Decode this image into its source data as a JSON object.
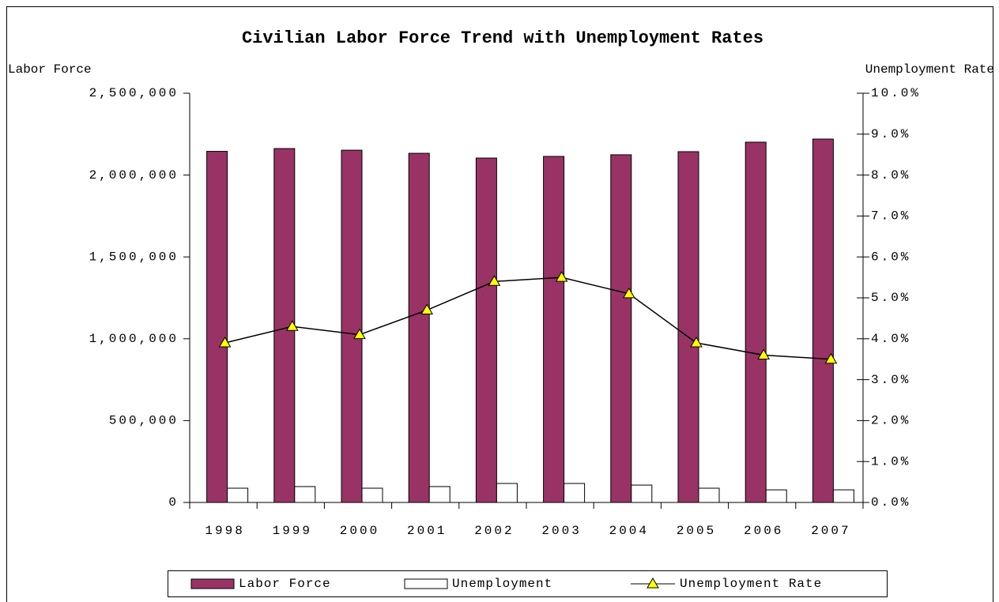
{
  "chart_data": {
    "type": "bar_line",
    "title": "Civilian Labor Force Trend with Unemployment Rates",
    "ylabel": "Labor Force",
    "y2label": "Unemployment Rate",
    "categories": [
      "1998",
      "1999",
      "2000",
      "2001",
      "2002",
      "2003",
      "2004",
      "2005",
      "2006",
      "2007"
    ],
    "series": [
      {
        "name": "Labor Force",
        "type": "bar",
        "color": "#993366",
        "values": [
          2145000,
          2162000,
          2152000,
          2133000,
          2104000,
          2114000,
          2124000,
          2143000,
          2201000,
          2220000
        ]
      },
      {
        "name": "Unemployment",
        "type": "bar",
        "color": "#ffffff",
        "values": [
          87000,
          97000,
          87000,
          97000,
          116000,
          116000,
          106000,
          87000,
          77000,
          77000
        ]
      },
      {
        "name": "Unemployment Rate",
        "type": "line",
        "axis": "y2",
        "color": "#000000",
        "marker_color": "#ffff00",
        "values": [
          3.9,
          4.3,
          4.1,
          4.7,
          5.4,
          5.5,
          5.1,
          3.9,
          3.6,
          3.5
        ]
      }
    ],
    "ylim": [
      0,
      2500000
    ],
    "yticks": [
      0,
      {
        "value": 500000,
        "label": "500,000"
      },
      {
        "value": 1000000,
        "label": "1,000,000"
      },
      {
        "value": 1500000,
        "label": "1,500,000"
      },
      {
        "value": 2000000,
        "label": "2,000,000"
      },
      {
        "value": 2500000,
        "label": "2,500,000"
      }
    ],
    "y2lim": [
      0,
      10
    ],
    "y2ticks": [
      {
        "value": 0,
        "label": "0.0%"
      },
      {
        "value": 1,
        "label": "1.0%"
      },
      {
        "value": 2,
        "label": "2.0%"
      },
      {
        "value": 3,
        "label": "3.0%"
      },
      {
        "value": 4,
        "label": "4.0%"
      },
      {
        "value": 5,
        "label": "5.0%"
      },
      {
        "value": 6,
        "label": "6.0%"
      },
      {
        "value": 7,
        "label": "7.0%"
      },
      {
        "value": 8,
        "label": "8.0%"
      },
      {
        "value": 9,
        "label": "9.0%"
      },
      {
        "value": 10,
        "label": "10.0%"
      }
    ],
    "grid": false,
    "legend": "bottom"
  }
}
